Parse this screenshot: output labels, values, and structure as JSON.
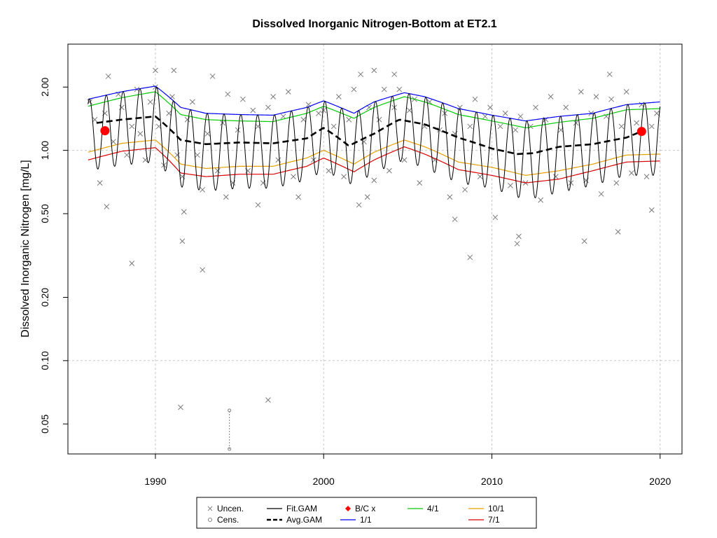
{
  "chart_data": {
    "type": "line",
    "title": "Dissolved Inorganic Nitrogen-Bottom at ET2.1",
    "ylabel": "Dissolved Inorganic Nitrogen [mg/L]",
    "xlabel": "",
    "y_scale": "log",
    "xlim": [
      1984.8,
      2021.3
    ],
    "ylim": [
      0.036,
      3.2
    ],
    "x_ticks": [
      1990,
      2000,
      2010,
      2020
    ],
    "x_tick_labels": [
      "1990",
      "2000",
      "2010",
      "2020"
    ],
    "y_ticks": [
      0.05,
      0.1,
      0.2,
      0.5,
      1.0,
      2.0
    ],
    "y_tick_labels": [
      "0.05",
      "0.10",
      "0.20",
      "0.50",
      "1.00",
      "2.00"
    ],
    "grid": true,
    "legend_position": "bottom-center",
    "legend": [
      {
        "label": "Uncen.",
        "symbol": "x",
        "color": "#808080"
      },
      {
        "label": "Cens.",
        "symbol": "circle",
        "color": "#808080"
      },
      {
        "label": "Fit.GAM",
        "symbol": "line",
        "color": "#000000"
      },
      {
        "label": "Avg.GAM",
        "symbol": "dashed",
        "color": "#000000"
      },
      {
        "label": "B/C x",
        "symbol": "diamond",
        "color": "#ff0000"
      },
      {
        "label": "1/1",
        "symbol": "line",
        "color": "#0000ff"
      },
      {
        "label": "4/1",
        "symbol": "line",
        "color": "#00cc00"
      },
      {
        "label": "7/1",
        "symbol": "line",
        "color": "#dd0000"
      },
      {
        "label": "10/1",
        "symbol": "line",
        "color": "#e69f00"
      }
    ],
    "avg_gam": {
      "name": "Avg.GAM",
      "x": [
        1986.5,
        1988,
        1990,
        1991.5,
        1993,
        1995,
        1997,
        1999,
        2000,
        2001.5,
        2003,
        2004.5,
        2006,
        2008,
        2010,
        2011.5,
        2012.5,
        2014,
        2016,
        2018,
        2019
      ],
      "y": [
        1.35,
        1.4,
        1.45,
        1.12,
        1.07,
        1.09,
        1.08,
        1.14,
        1.28,
        1.05,
        1.2,
        1.4,
        1.33,
        1.15,
        1.02,
        0.96,
        0.97,
        1.04,
        1.07,
        1.15,
        1.24
      ]
    },
    "seasonal_lines": [
      {
        "name": "1/1",
        "color": "#0000ff",
        "x": [
          1986,
          1988,
          1990,
          1991.5,
          1993,
          1995,
          1997,
          1999,
          2000,
          2001.8,
          2003,
          2004.8,
          2006,
          2008,
          2010,
          2012,
          2014,
          2016,
          2018,
          2020
        ],
        "y": [
          1.75,
          1.9,
          2.02,
          1.6,
          1.5,
          1.48,
          1.47,
          1.6,
          1.72,
          1.5,
          1.7,
          1.88,
          1.8,
          1.58,
          1.47,
          1.38,
          1.45,
          1.5,
          1.65,
          1.7
        ]
      },
      {
        "name": "4/1",
        "color": "#00cc00",
        "x": [
          1986,
          1988,
          1990,
          1991.5,
          1993,
          1995,
          1997,
          1999,
          2000,
          2001.8,
          2003,
          2004.8,
          2006,
          2008,
          2010,
          2012,
          2014,
          2016,
          2018,
          2020
        ],
        "y": [
          1.62,
          1.78,
          1.9,
          1.48,
          1.4,
          1.38,
          1.37,
          1.5,
          1.62,
          1.42,
          1.6,
          1.8,
          1.7,
          1.48,
          1.38,
          1.28,
          1.36,
          1.42,
          1.56,
          1.58
        ]
      },
      {
        "name": "10/1",
        "color": "#e69f00",
        "x": [
          1986,
          1988,
          1990,
          1991.5,
          1993,
          1995,
          1997,
          1999,
          2000,
          2001.8,
          2003,
          2004.8,
          2006,
          2008,
          2010,
          2012,
          2014,
          2016,
          2018,
          2020
        ],
        "y": [
          0.98,
          1.08,
          1.12,
          0.86,
          0.82,
          0.84,
          0.84,
          0.92,
          1.0,
          0.86,
          0.98,
          1.12,
          1.04,
          0.88,
          0.83,
          0.76,
          0.8,
          0.86,
          0.95,
          0.96
        ]
      },
      {
        "name": "7/1",
        "color": "#dd0000",
        "x": [
          1986,
          1988,
          1990,
          1991.5,
          1993,
          1995,
          1997,
          1999,
          2000,
          2001.8,
          2003,
          2004.8,
          2006,
          2008,
          2010,
          2012,
          2014,
          2016,
          2018,
          2020
        ],
        "y": [
          0.9,
          0.99,
          1.03,
          0.78,
          0.75,
          0.77,
          0.77,
          0.84,
          0.92,
          0.79,
          0.9,
          1.04,
          0.96,
          0.81,
          0.76,
          0.7,
          0.73,
          0.8,
          0.88,
          0.89
        ]
      }
    ],
    "fit_gam": {
      "name": "Fit.GAM",
      "start": 1986.0,
      "end": 2020.0,
      "cycles_per_year": 1,
      "peak": [
        1.75,
        1.9,
        2.02,
        1.6,
        1.5,
        1.48,
        1.47,
        1.6,
        1.72,
        1.5,
        1.7,
        1.88,
        1.8,
        1.58,
        1.47,
        1.38,
        1.45,
        1.5,
        1.65,
        1.7
      ],
      "trough": [
        0.8,
        0.85,
        0.88,
        0.67,
        0.64,
        0.66,
        0.66,
        0.72,
        0.8,
        0.68,
        0.78,
        0.9,
        0.82,
        0.7,
        0.66,
        0.58,
        0.63,
        0.68,
        0.76,
        0.76
      ]
    },
    "bc_points": [
      {
        "x": 1987.0,
        "y": 1.24
      },
      {
        "x": 2018.9,
        "y": 1.23
      }
    ],
    "censored": {
      "x": 1994.4,
      "y_low": 0.038,
      "y_high": 0.058
    },
    "uncensored_points": {
      "x": [
        1986.1,
        1986.4,
        1986.7,
        1987.0,
        1987.2,
        1987.5,
        1987.8,
        1988.0,
        1988.3,
        1988.6,
        1988.9,
        1989.1,
        1989.4,
        1989.7,
        1990.0,
        1990.2,
        1990.5,
        1990.8,
        1991.0,
        1991.3,
        1991.6,
        1991.9,
        1992.2,
        1992.5,
        1992.8,
        1993.1,
        1993.4,
        1993.7,
        1994.0,
        1994.3,
        1994.6,
        1994.9,
        1995.2,
        1995.5,
        1995.8,
        1996.1,
        1996.4,
        1996.7,
        1997.0,
        1997.3,
        1997.6,
        1997.9,
        1998.2,
        1998.5,
        1998.8,
        1999.1,
        1999.4,
        1999.7,
        2000.0,
        2000.3,
        2000.6,
        2000.9,
        2001.2,
        2001.5,
        2001.8,
        2002.1,
        2002.4,
        2002.7,
        2003.0,
        2003.3,
        2003.6,
        2003.9,
        2004.2,
        2004.5,
        2004.8,
        2005.1,
        2005.4,
        2005.7,
        2006.0,
        2006.3,
        2006.6,
        2006.9,
        2007.2,
        2007.5,
        2007.8,
        2008.1,
        2008.4,
        2008.7,
        2009.0,
        2009.3,
        2009.6,
        2009.9,
        2010.2,
        2010.5,
        2010.8,
        2011.1,
        2011.4,
        2011.7,
        2012.0,
        2012.3,
        2012.6,
        2012.9,
        2013.2,
        2013.5,
        2013.8,
        2014.1,
        2014.4,
        2014.7,
        2015.0,
        2015.3,
        2015.6,
        2015.9,
        2016.2,
        2016.5,
        2016.8,
        2017.1,
        2017.4,
        2017.7,
        2018.0,
        2018.3,
        2018.6,
        2018.9,
        2019.2,
        2019.5,
        2019.8,
        1987.1,
        1988.6,
        1991.7,
        1991.6,
        1992.8,
        1991.5,
        1996.7,
        2007.8,
        2008.7,
        2011.6,
        2015.5,
        2017.5,
        2019.5,
        1990.0,
        1991.1,
        2003.0,
        2004.2,
        2017.0,
        2002.2,
        2002.6,
        1994.2,
        1996.1,
        2011.5
      ],
      "y": [
        1.7,
        1.4,
        0.7,
        1.5,
        2.25,
        1.1,
        1.85,
        1.6,
        0.95,
        1.3,
        1.95,
        1.2,
        0.9,
        1.7,
        2.0,
        1.3,
        0.85,
        1.5,
        1.8,
        0.95,
        0.75,
        1.4,
        1.7,
        0.95,
        0.65,
        1.2,
        2.25,
        0.8,
        1.35,
        1.85,
        0.7,
        1.25,
        1.75,
        0.8,
        1.55,
        1.3,
        0.7,
        1.6,
        1.8,
        0.9,
        1.45,
        1.9,
        0.75,
        0.6,
        1.4,
        1.65,
        0.9,
        1.5,
        1.55,
        0.8,
        1.3,
        1.8,
        0.75,
        1.4,
        1.95,
        0.55,
        1.1,
        1.6,
        0.72,
        1.4,
        1.95,
        0.8,
        1.6,
        1.95,
        0.9,
        1.55,
        1.75,
        0.7,
        1.3,
        1.7,
        0.9,
        1.25,
        1.5,
        0.6,
        1.2,
        1.6,
        0.65,
        1.3,
        1.75,
        0.75,
        1.45,
        1.6,
        0.48,
        1.3,
        1.5,
        0.68,
        1.25,
        1.45,
        0.7,
        1.3,
        1.6,
        0.58,
        1.4,
        1.8,
        0.75,
        1.25,
        1.6,
        0.7,
        1.35,
        1.9,
        0.72,
        1.5,
        1.8,
        0.62,
        1.45,
        1.75,
        0.7,
        1.3,
        1.9,
        0.78,
        1.35,
        1.65,
        0.75,
        1.3,
        1.5,
        0.54,
        0.29,
        0.51,
        0.37,
        0.27,
        0.06,
        0.065,
        0.47,
        0.31,
        0.39,
        0.37,
        0.41,
        0.52,
        2.4,
        2.4,
        2.4,
        2.3,
        2.3,
        2.3,
        0.6,
        0.6,
        0.55,
        0.36
      ]
    }
  }
}
